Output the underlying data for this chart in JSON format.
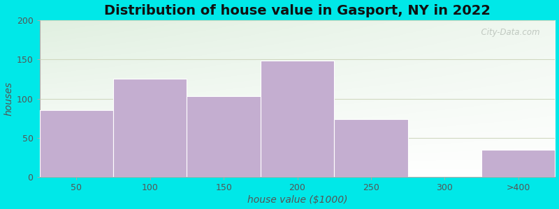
{
  "title": "Distribution of house value in Gasport, NY in 2022",
  "xlabel": "house value ($1000)",
  "ylabel": "houses",
  "categories": [
    "50",
    "100",
    "150",
    "200",
    "250",
    "300",
    ">400"
  ],
  "values": [
    85,
    125,
    103,
    148,
    74,
    0,
    35
  ],
  "bar_color": "#c4aed0",
  "bar_edgecolor": "#ffffff",
  "ylim": [
    0,
    200
  ],
  "yticks": [
    0,
    50,
    100,
    150,
    200
  ],
  "outer_bg": "#00e8e8",
  "title_fontsize": 14,
  "axis_label_fontsize": 10,
  "tick_fontsize": 9,
  "watermark": "  City-Data.com",
  "grid_color": "#d0d8c0",
  "spine_color": "#aaaaaa"
}
